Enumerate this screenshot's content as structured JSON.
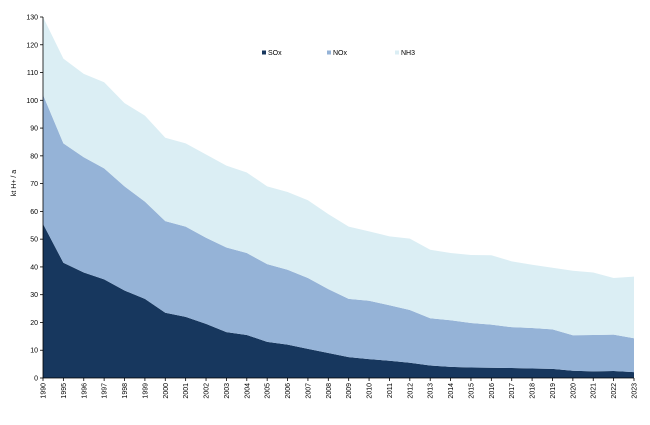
{
  "chart_data": {
    "type": "area",
    "stacked": true,
    "ylabel": "kt H+ / a",
    "xlabel": "",
    "title": "",
    "ylim": [
      0,
      130
    ],
    "y_ticks": [
      0,
      10,
      20,
      30,
      40,
      50,
      60,
      70,
      80,
      90,
      100,
      110,
      120,
      130
    ],
    "grid": false,
    "legend_position": "top-center",
    "categories": [
      "1990",
      "1995",
      "1996",
      "1997",
      "1998",
      "1999",
      "2000",
      "2001",
      "2002",
      "2003",
      "2004",
      "2005",
      "2006",
      "2007",
      "2008",
      "2009",
      "2010",
      "2011",
      "2012",
      "2013",
      "2014",
      "2015",
      "2016",
      "2017",
      "2018",
      "2019",
      "2020",
      "2021",
      "2022",
      "2023"
    ],
    "series": [
      {
        "name": "SOx",
        "color": "#17375e",
        "values": [
          55.5,
          41.5,
          38,
          35.5,
          31.5,
          28.5,
          23.5,
          22,
          19.5,
          16.5,
          15.5,
          13,
          12,
          10.5,
          9,
          7.5,
          6.8,
          6.2,
          5.5,
          4.5,
          4,
          3.8,
          3.7,
          3.6,
          3.4,
          3.3,
          2.6,
          2.4,
          2.5,
          2.1
        ]
      },
      {
        "name": "NOx",
        "color": "#95b3d7",
        "values": [
          46.5,
          43,
          41.5,
          40,
          37.5,
          35,
          33,
          32.5,
          31,
          30.5,
          29.5,
          28,
          27,
          25.5,
          23,
          21,
          21,
          20,
          19,
          17,
          16.8,
          16,
          15.5,
          14.7,
          14.6,
          14.2,
          12.8,
          13.1,
          13.1,
          12.2
        ]
      },
      {
        "name": "NH3",
        "color": "#dbeef4",
        "values": [
          28,
          30.5,
          30,
          31,
          30,
          31,
          30,
          30,
          30,
          29.5,
          29,
          28,
          28,
          28,
          27,
          26,
          25,
          24.8,
          25.7,
          24.7,
          24.2,
          24.5,
          25,
          23.7,
          22.8,
          22.2,
          23.2,
          22.5,
          20.4,
          22.2
        ]
      }
    ]
  }
}
